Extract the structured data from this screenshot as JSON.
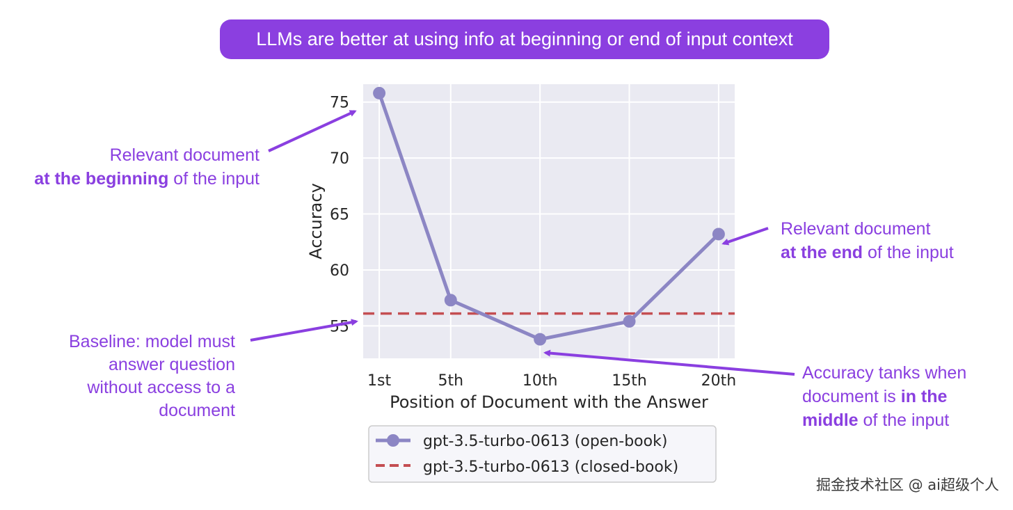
{
  "banner": {
    "text": "LLMs are better at using info at beginning or end of input context"
  },
  "annotations": {
    "beginning": {
      "line1": "Relevant document",
      "line2_bold": "at the beginning",
      "line2_rest": " of the input"
    },
    "end": {
      "line1": "Relevant document",
      "line2_bold": "at the end",
      "line2_rest": " of the input"
    },
    "baseline": {
      "line1": "Baseline: model must",
      "line2": "answer question",
      "line3": "without access to a",
      "line4": "document"
    },
    "middle": {
      "line1": "Accuracy tanks when",
      "line2_pre": "document is ",
      "line2_bold": "in the",
      "line3_bold": "middle",
      "line3_rest": " of the input"
    }
  },
  "watermark": "掘金技术社区 @ ai超级个人",
  "colors": {
    "accent": "#8b3fe0",
    "series_open": "#8c86c4",
    "series_closed": "#c44e52",
    "plot_bg": "#eaeaf2"
  },
  "chart_data": {
    "type": "line",
    "xlabel": "Position of Document with the Answer",
    "ylabel": "Accuracy",
    "categories": [
      "1st",
      "5th",
      "10th",
      "15th",
      "20th"
    ],
    "x": [
      1,
      5,
      10,
      15,
      20
    ],
    "xlim": [
      0.1,
      20.9
    ],
    "ylim": [
      52.1,
      76.6
    ],
    "yticks": [
      55,
      60,
      65,
      70,
      75
    ],
    "grid": true,
    "series": [
      {
        "name": "gpt-3.5-turbo-0613 (open-book)",
        "values": [
          75.8,
          57.3,
          53.8,
          55.4,
          63.2
        ],
        "style": "solid-marker"
      },
      {
        "name": "gpt-3.5-turbo-0613 (closed-book)",
        "values": [
          56.1,
          56.1,
          56.1,
          56.1,
          56.1
        ],
        "style": "dashed"
      }
    ],
    "legend_position": "below"
  }
}
